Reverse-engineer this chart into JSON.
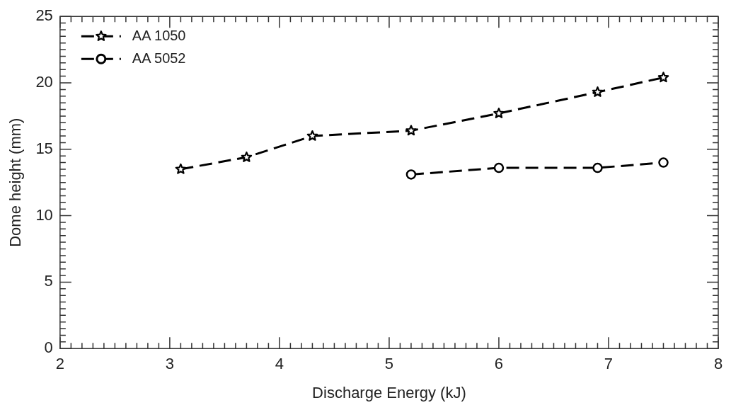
{
  "chart_data": {
    "type": "line",
    "xlabel": "Discharge Energy (kJ)",
    "ylabel": "Dome height (mm)",
    "xlim": [
      2,
      8
    ],
    "xticks": [
      2,
      3,
      4,
      5,
      6,
      7,
      8
    ],
    "ylim": [
      0,
      25
    ],
    "yticks": [
      0,
      5,
      10,
      15,
      20,
      25
    ],
    "grid": false,
    "legend": "top left",
    "line_style": "dashed",
    "series": [
      {
        "name": "AA 1050",
        "color": "#000000",
        "marker": "star",
        "x": [
          3.1,
          3.7,
          4.3,
          5.2,
          6,
          6.9,
          7.5
        ],
        "values": [
          13.5,
          14.4,
          16.0,
          16.4,
          17.7,
          19.3,
          20.4
        ]
      },
      {
        "name": "AA 5052",
        "color": "#000000",
        "marker": "circle",
        "x": [
          5.2,
          6,
          6.9,
          7.5
        ],
        "values": [
          13.1,
          13.6,
          13.6,
          14.0
        ]
      }
    ]
  }
}
